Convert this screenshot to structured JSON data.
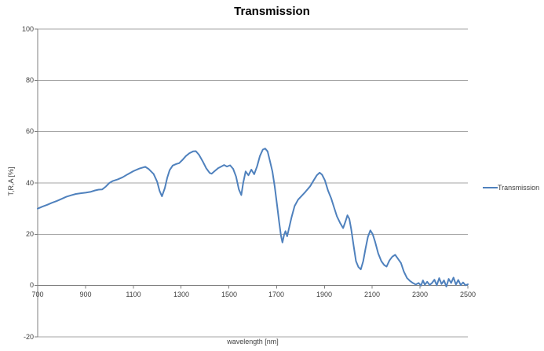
{
  "chart_data": {
    "type": "line",
    "title": "Transmission",
    "xlabel": "wavelength [nm]",
    "ylabel": "T,R,A [%]",
    "xlim": [
      700,
      2500
    ],
    "ylim": [
      -20,
      100
    ],
    "x_ticks": [
      700,
      900,
      1100,
      1300,
      1500,
      1700,
      1900,
      2100,
      2300,
      2500
    ],
    "y_ticks": [
      100,
      80,
      60,
      40,
      20,
      0,
      -20
    ],
    "grid": "horizontal-only",
    "x_axis_position": "at-zero",
    "legend": {
      "position": "right",
      "entries": [
        {
          "label": "Transmission",
          "color": "#4f81bd"
        }
      ]
    },
    "colors": {
      "series": "#4f81bd",
      "gridline": "#a6a6a6",
      "axis": "#7f7f7f",
      "tick_text": "#404040",
      "title_text": "#000000",
      "background": "#ffffff"
    },
    "series": [
      {
        "name": "Transmission",
        "color": "#4f81bd",
        "x": [
          700,
          720,
          740,
          760,
          780,
          800,
          820,
          840,
          860,
          880,
          900,
          920,
          940,
          955,
          970,
          985,
          1000,
          1015,
          1035,
          1055,
          1075,
          1100,
          1125,
          1150,
          1165,
          1185,
          1200,
          1210,
          1220,
          1232,
          1242,
          1252,
          1265,
          1280,
          1292,
          1305,
          1320,
          1335,
          1350,
          1362,
          1375,
          1390,
          1405,
          1420,
          1428,
          1440,
          1455,
          1468,
          1480,
          1492,
          1505,
          1518,
          1530,
          1542,
          1552,
          1560,
          1570,
          1582,
          1594,
          1606,
          1618,
          1630,
          1642,
          1652,
          1662,
          1672,
          1682,
          1692,
          1702,
          1710,
          1718,
          1724,
          1731,
          1737,
          1744,
          1752,
          1762,
          1775,
          1790,
          1805,
          1820,
          1840,
          1855,
          1868,
          1880,
          1890,
          1902,
          1915,
          1928,
          1940,
          1952,
          1965,
          1978,
          1988,
          1996,
          2004,
          2012,
          2022,
          2032,
          2042,
          2052,
          2062,
          2072,
          2082,
          2092,
          2102,
          2112,
          2125,
          2138,
          2150,
          2160,
          2172,
          2184,
          2196,
          2208,
          2220,
          2232,
          2245,
          2258,
          2270,
          2282,
          2294,
          2304,
          2312,
          2320,
          2330,
          2340,
          2350,
          2360,
          2370,
          2380,
          2390,
          2400,
          2410,
          2420,
          2430,
          2440,
          2450,
          2460,
          2470,
          2480,
          2490,
          2500
        ],
        "y": [
          30,
          30.8,
          31.5,
          32.3,
          33,
          33.8,
          34.6,
          35.2,
          35.7,
          36,
          36.2,
          36.5,
          37.1,
          37.4,
          37.5,
          38.6,
          40,
          40.8,
          41.4,
          42.2,
          43.3,
          44.6,
          45.6,
          46.3,
          45.4,
          43.5,
          40.5,
          36.9,
          34.8,
          38,
          42,
          45,
          46.8,
          47.4,
          47.7,
          48.9,
          50.5,
          51.6,
          52.3,
          52.4,
          51,
          48.5,
          45.8,
          43.9,
          43.6,
          44.6,
          45.8,
          46.4,
          47,
          46.4,
          46.9,
          45.5,
          42.5,
          37.5,
          35.3,
          40,
          44.5,
          43,
          45.2,
          43.4,
          46.5,
          50.5,
          53,
          53.4,
          52.3,
          48.5,
          44.5,
          38.5,
          31,
          25,
          19.5,
          16.8,
          19.8,
          21.2,
          19.2,
          22.5,
          26.5,
          31,
          33.5,
          35,
          36.5,
          38.7,
          41,
          43,
          44,
          43.2,
          41,
          37,
          34,
          30.5,
          27,
          24.5,
          22.4,
          25,
          27.4,
          26,
          22,
          15.5,
          9.5,
          7.2,
          6.3,
          9.5,
          14.5,
          19,
          21.5,
          20,
          17,
          12.5,
          9.5,
          8,
          7.4,
          9.8,
          11.3,
          12,
          10.4,
          8.8,
          5.5,
          3,
          1.8,
          1,
          0.4,
          1,
          0,
          2,
          0.3,
          1.5,
          0.2,
          1,
          2.3,
          0.1,
          2.9,
          0.6,
          2,
          -0.4,
          2.6,
          1,
          3.1,
          0.4,
          2.2,
          0.2,
          1.2,
          0.1,
          0.5
        ]
      }
    ]
  }
}
